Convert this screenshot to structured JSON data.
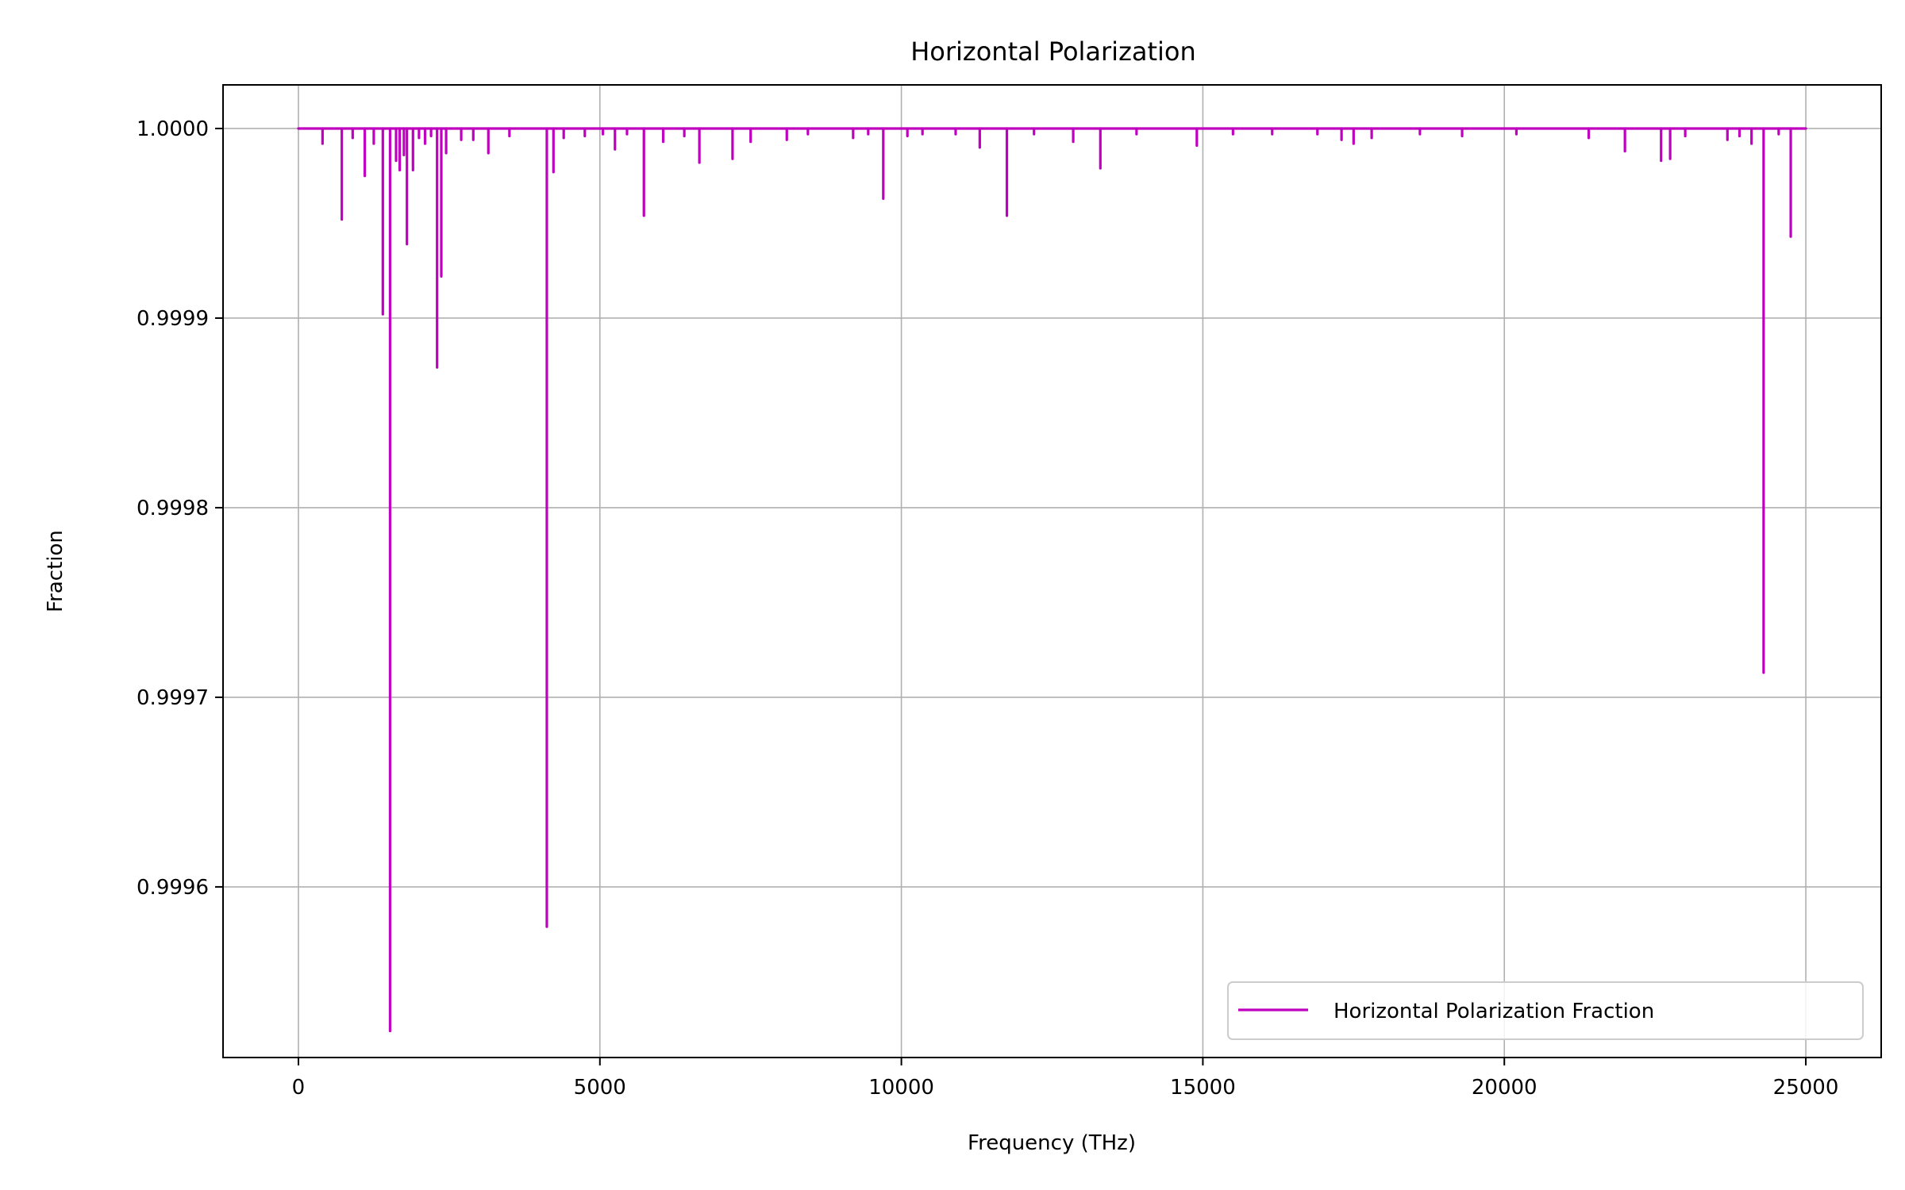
{
  "chart_data": {
    "type": "line",
    "title": "Horizontal Polarization",
    "xlabel": "Frequency (THz)",
    "ylabel": "Fraction",
    "xlim": [
      -1250,
      26250
    ],
    "ylim": [
      0.99951,
      1.000023
    ],
    "xticks": [
      0,
      5000,
      10000,
      15000,
      20000,
      25000
    ],
    "xtick_labels": [
      "0",
      "5000",
      "10000",
      "15000",
      "20000",
      "25000"
    ],
    "yticks": [
      0.9996,
      0.9997,
      0.9998,
      0.9999,
      1.0
    ],
    "ytick_labels": [
      "0.9996",
      "0.9997",
      "0.9998",
      "0.9999",
      "1.0000"
    ],
    "grid": true,
    "legend_position": "lower-right",
    "series": [
      {
        "name": "Horizontal Polarization Fraction",
        "color": "#bf00bf",
        "baseline": 1.0,
        "x_range": [
          0,
          25000
        ],
        "dips": [
          [
            400,
            0.999992
          ],
          [
            720,
            0.999952
          ],
          [
            900,
            0.999995
          ],
          [
            1100,
            0.999975
          ],
          [
            1250,
            0.999992
          ],
          [
            1400,
            0.999902
          ],
          [
            1520,
            0.999524
          ],
          [
            1620,
            0.999983
          ],
          [
            1680,
            0.999978
          ],
          [
            1750,
            0.999986
          ],
          [
            1800,
            0.999939
          ],
          [
            1900,
            0.999978
          ],
          [
            2000,
            0.999995
          ],
          [
            2100,
            0.999992
          ],
          [
            2200,
            0.999996
          ],
          [
            2300,
            0.999874
          ],
          [
            2370,
            0.999922
          ],
          [
            2450,
            0.999987
          ],
          [
            2700,
            0.999994
          ],
          [
            2900,
            0.999994
          ],
          [
            3150,
            0.999987
          ],
          [
            3500,
            0.999996
          ],
          [
            4120,
            0.999579
          ],
          [
            4230,
            0.999977
          ],
          [
            4400,
            0.999995
          ],
          [
            4750,
            0.999996
          ],
          [
            5050,
            0.999997
          ],
          [
            5250,
            0.999989
          ],
          [
            5450,
            0.999997
          ],
          [
            5730,
            0.999954
          ],
          [
            6050,
            0.999993
          ],
          [
            6400,
            0.999996
          ],
          [
            6650,
            0.999982
          ],
          [
            7200,
            0.999984
          ],
          [
            7500,
            0.999993
          ],
          [
            8100,
            0.999994
          ],
          [
            8450,
            0.999997
          ],
          [
            9200,
            0.999995
          ],
          [
            9450,
            0.999997
          ],
          [
            9700,
            0.999963
          ],
          [
            10100,
            0.999996
          ],
          [
            10350,
            0.999997
          ],
          [
            10900,
            0.999997
          ],
          [
            11300,
            0.99999
          ],
          [
            11750,
            0.999954
          ],
          [
            12200,
            0.999997
          ],
          [
            12850,
            0.999993
          ],
          [
            13300,
            0.999979
          ],
          [
            13900,
            0.999997
          ],
          [
            14900,
            0.999991
          ],
          [
            15500,
            0.999997
          ],
          [
            16150,
            0.999997
          ],
          [
            16900,
            0.999997
          ],
          [
            17300,
            0.999994
          ],
          [
            17500,
            0.999992
          ],
          [
            17800,
            0.999995
          ],
          [
            18600,
            0.999997
          ],
          [
            19300,
            0.999996
          ],
          [
            20200,
            0.999997
          ],
          [
            21400,
            0.999995
          ],
          [
            22000,
            0.999988
          ],
          [
            22600,
            0.999983
          ],
          [
            22750,
            0.999984
          ],
          [
            23000,
            0.999996
          ],
          [
            23700,
            0.999994
          ],
          [
            23900,
            0.999996
          ],
          [
            24100,
            0.999992
          ],
          [
            24300,
            0.999713
          ],
          [
            24550,
            0.999997
          ],
          [
            24750,
            0.999943
          ]
        ]
      }
    ]
  }
}
